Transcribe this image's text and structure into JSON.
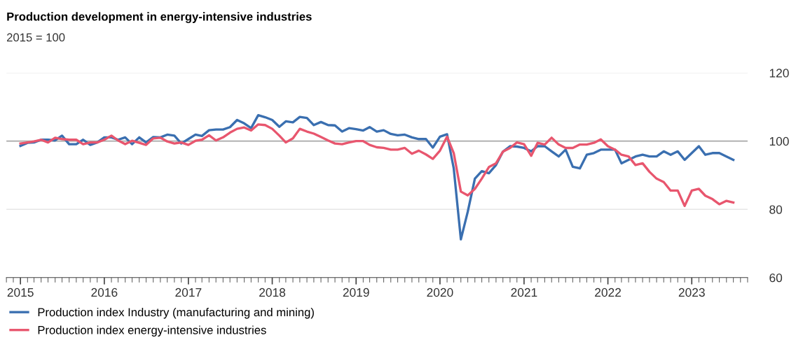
{
  "chart_data": {
    "type": "line",
    "title": "Production development in energy-intensive industries",
    "subtitle": "2015 = 100",
    "x": [
      "2015-01",
      "2015-02",
      "2015-03",
      "2015-04",
      "2015-05",
      "2015-06",
      "2015-07",
      "2015-08",
      "2015-09",
      "2015-10",
      "2015-11",
      "2015-12",
      "2016-01",
      "2016-02",
      "2016-03",
      "2016-04",
      "2016-05",
      "2016-06",
      "2016-07",
      "2016-08",
      "2016-09",
      "2016-10",
      "2016-11",
      "2016-12",
      "2017-01",
      "2017-02",
      "2017-03",
      "2017-04",
      "2017-05",
      "2017-06",
      "2017-07",
      "2017-08",
      "2017-09",
      "2017-10",
      "2017-11",
      "2017-12",
      "2018-01",
      "2018-02",
      "2018-03",
      "2018-04",
      "2018-05",
      "2018-06",
      "2018-07",
      "2018-08",
      "2018-09",
      "2018-10",
      "2018-11",
      "2018-12",
      "2019-01",
      "2019-02",
      "2019-03",
      "2019-04",
      "2019-05",
      "2019-06",
      "2019-07",
      "2019-08",
      "2019-09",
      "2019-10",
      "2019-11",
      "2019-12",
      "2020-01",
      "2020-02",
      "2020-03",
      "2020-04",
      "2020-05",
      "2020-06",
      "2020-07",
      "2020-08",
      "2020-09",
      "2020-10",
      "2020-11",
      "2020-12",
      "2021-01",
      "2021-02",
      "2021-03",
      "2021-04",
      "2021-05",
      "2021-06",
      "2021-07",
      "2021-08",
      "2021-09",
      "2021-10",
      "2021-11",
      "2021-12",
      "2022-01",
      "2022-02",
      "2022-03",
      "2022-04",
      "2022-05",
      "2022-06",
      "2022-07",
      "2022-08",
      "2022-09",
      "2022-10",
      "2022-11",
      "2022-12",
      "2023-01",
      "2023-02",
      "2023-03",
      "2023-04",
      "2023-05",
      "2023-06",
      "2023-07"
    ],
    "series": [
      {
        "name": "Production index Industry (manufacturing and mining)",
        "color": "#3a6fb0",
        "values": [
          98.6,
          99.5,
          99.6,
          100.4,
          100.4,
          100.2,
          101.6,
          99.1,
          99.1,
          100.4,
          98.9,
          99.6,
          101.1,
          101.1,
          100.4,
          101.1,
          99.1,
          101.1,
          99.6,
          101.2,
          101.1,
          101.9,
          101.6,
          99.3,
          100.6,
          101.9,
          101.5,
          103.2,
          103.4,
          103.4,
          104.1,
          106.2,
          105.2,
          103.8,
          107.6,
          107,
          106.2,
          104.2,
          105.8,
          105.5,
          107.1,
          106.8,
          104.7,
          105.6,
          104.7,
          104.6,
          102.8,
          103.8,
          103.5,
          103.1,
          104.1,
          102.8,
          103.2,
          102.1,
          101.7,
          101.9,
          101.1,
          100.6,
          100.6,
          98.1,
          101.3,
          102,
          92,
          71.2,
          79.3,
          89,
          91.2,
          90.6,
          93,
          96.9,
          98.5,
          98.4,
          98,
          97,
          98.5,
          98.5,
          97,
          95.5,
          97.5,
          92.5,
          92,
          96,
          96.5,
          97.5,
          97.5,
          97.5,
          93.5,
          94.5,
          95.5,
          96,
          95.5,
          95.5,
          97,
          96,
          97,
          94.5,
          96.5,
          98.5,
          96,
          96.5,
          96.5,
          95.5,
          94.5
        ]
      },
      {
        "name": "Production index energy-intensive industries",
        "color": "#e8566e",
        "values": [
          99.3,
          99.6,
          99.9,
          100.4,
          99.6,
          101,
          100.6,
          100.4,
          100.4,
          99.1,
          99.6,
          99.6,
          100.4,
          101.6,
          100.2,
          99.1,
          100.1,
          99.5,
          98.9,
          100.8,
          101,
          99.9,
          99.3,
          99.6,
          98.9,
          100.1,
          100.4,
          101.7,
          100.2,
          101.1,
          102.5,
          103.6,
          104,
          103.1,
          104.9,
          104.7,
          103.6,
          101.6,
          99.6,
          100.8,
          103.6,
          102.8,
          102.2,
          101.2,
          100.2,
          99.3,
          99.1,
          99.6,
          100,
          100,
          98.9,
          98.2,
          98,
          97.5,
          97.5,
          98,
          96.3,
          97.2,
          96.1,
          94.8,
          97.2,
          101.3,
          96.5,
          85.2,
          84.1,
          86,
          89,
          92.4,
          93.5,
          96.9,
          98,
          99.6,
          99.1,
          95.7,
          99.5,
          99,
          101,
          99,
          98,
          98,
          99,
          99,
          99.5,
          100.5,
          98.5,
          97.5,
          96,
          95.5,
          93,
          93.5,
          91,
          89,
          88,
          85.5,
          85.5,
          81,
          85.5,
          86,
          84,
          83,
          81.5,
          82.5,
          82
        ]
      }
    ],
    "xlim": [
      "2014-11",
      "2023-09"
    ],
    "xticks": [
      "2015",
      "2016",
      "2017",
      "2018",
      "2019",
      "2020",
      "2021",
      "2022",
      "2023"
    ],
    "ylim": [
      60,
      120
    ],
    "yticks": [
      60,
      80,
      100,
      120
    ],
    "grid": "y",
    "legend": "bottom",
    "ref_lines": [
      {
        "axis": "y",
        "value": 100,
        "color": "#aaaaaa"
      }
    ]
  }
}
